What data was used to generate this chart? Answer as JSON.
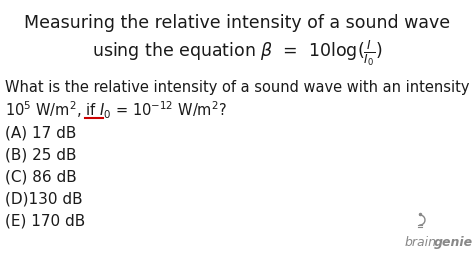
{
  "background_color": "#ffffff",
  "title_line1": "Measuring the relative intensity of a sound wave",
  "title_line2_latex": "using the equation $\\beta$  =  10log($\\frac{I}{I_0}$)",
  "question_line1": "What is the relative intensity of a sound wave with an intensity of",
  "question_line2_latex": "10$^5$ W/m$^2$, if $I_0$ = 10$^{-12}$ W/m$^2$?",
  "options": [
    "(A) 17 dB",
    "(B) 25 dB",
    "(C) 86 dB",
    "(D)130 dB",
    "(E) 170 dB"
  ],
  "underline_color": "#cc0000",
  "text_color": "#1a1a1a",
  "braingenie_color": "#888888",
  "title_fontsize": 12.5,
  "body_fontsize": 10.5,
  "options_fontsize": 11,
  "braingenie_fontsize": 9,
  "figsize": [
    4.74,
    2.66
  ],
  "dpi": 100
}
